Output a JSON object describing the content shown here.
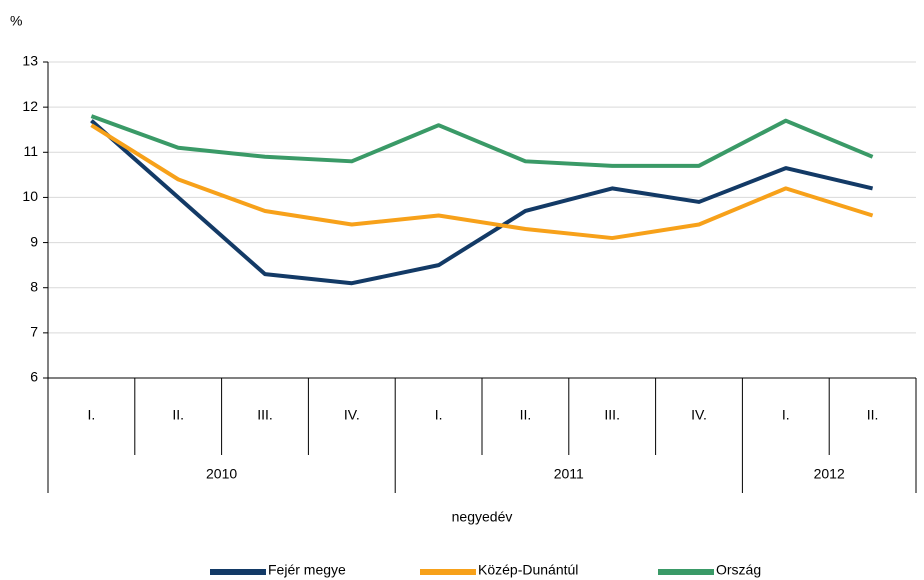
{
  "chart_data": {
    "type": "line",
    "y_label": "%",
    "x_label": "negyedév",
    "categories": [
      "I.",
      "II.",
      "III.",
      "IV.",
      "I.",
      "II.",
      "III.",
      "IV.",
      "I.",
      "II."
    ],
    "groups": [
      {
        "label": "2010",
        "count": 4
      },
      {
        "label": "2011",
        "count": 4
      },
      {
        "label": "2012",
        "count": 2
      }
    ],
    "series": [
      {
        "name": "Fejér megye",
        "color": "#133a66",
        "values": [
          11.7,
          10.0,
          8.3,
          8.1,
          8.5,
          9.7,
          10.2,
          9.9,
          10.65,
          10.2
        ]
      },
      {
        "name": "Közép-Dunántúl",
        "color": "#f7a11a",
        "values": [
          11.6,
          10.4,
          9.7,
          9.4,
          9.6,
          9.3,
          9.1,
          9.4,
          10.2,
          9.6
        ]
      },
      {
        "name": "Ország",
        "color": "#3a9a67",
        "values": [
          11.8,
          11.1,
          10.9,
          10.8,
          11.6,
          10.8,
          10.7,
          10.7,
          11.7,
          10.9
        ]
      }
    ],
    "ylim": [
      6,
      13
    ],
    "yticks": [
      6,
      7,
      8,
      9,
      10,
      11,
      12,
      13
    ],
    "grid": true,
    "legend": "bottom"
  }
}
